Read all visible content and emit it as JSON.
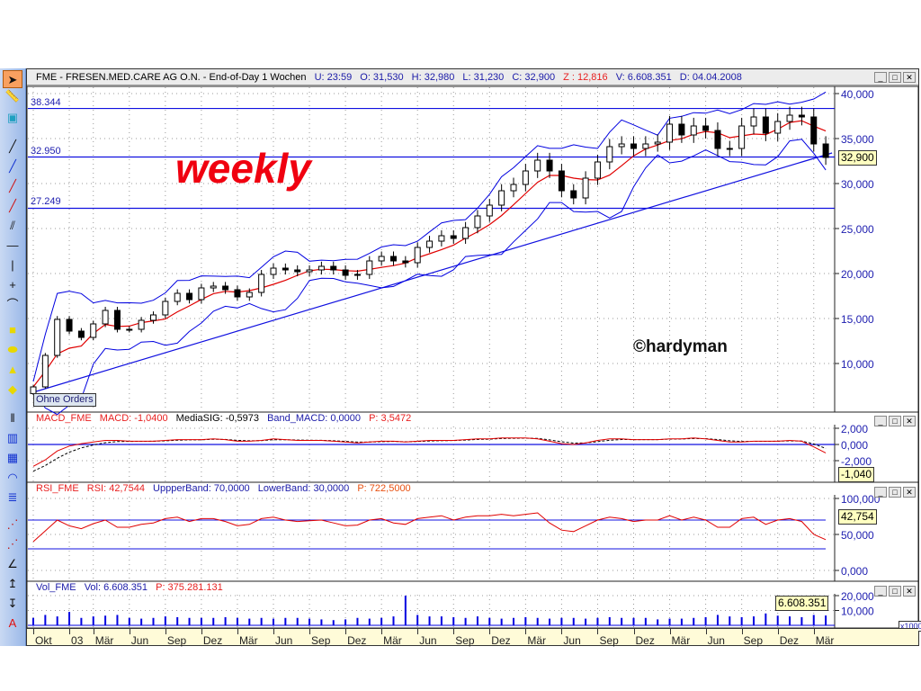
{
  "header": {
    "symbol": "FME - FRESEN.MED.CARE AG O.N. - End-of-Day 1 Wochen",
    "u": "U: 23:59",
    "o": "O: 31,530",
    "h": "H: 32,980",
    "l": "L: 31,230",
    "c": "C: 32,900",
    "z": "Z : 12,816",
    "v": "V: 6.608.351",
    "d": "D: 04.04.2008"
  },
  "overlays": {
    "weekly": "weekly",
    "copyright": "©hardyman",
    "ohne_orders": "Ohne Orders",
    "level_labels": [
      "38.344",
      "32.950",
      "27.249"
    ]
  },
  "macd_header": {
    "name": "MACD_FME",
    "macd": "MACD: -1,0400",
    "sig": "MediaSIG: -0,5973",
    "band": "Band_MACD: 0,0000",
    "p": "P: 3,5472"
  },
  "rsi_header": {
    "name": "RSI_FME",
    "rsi": "RSI: 42,7544",
    "upper": "UppperBand: 70,0000",
    "lower": "LowerBand: 30,0000",
    "p": "P: 722,5000"
  },
  "vol_header": {
    "name": "Vol_FME",
    "vol": "Vol: 6.608.351",
    "p": "P: 375.281.131"
  },
  "current": {
    "price": "32,900",
    "macd": "-1,040",
    "rsi": "42,754",
    "vol": "6.608.351",
    "vol_unit": "x1000"
  },
  "colors": {
    "price": "#000000",
    "sma": "#e00000",
    "bands": "#0000e0",
    "macd": "#e00000",
    "signal": "#000000",
    "rsi": "#e00000",
    "volume": "#0000e0",
    "weekly_text": "#f00010"
  },
  "toolbar": {
    "icons": [
      "arrow-cursor",
      "ruler",
      "fill-rectangle",
      "line",
      "line-blue",
      "line-red",
      "line-red-blue",
      "parallel-lines",
      "horizontal-line",
      "vertical-line",
      "crosshair",
      "curve",
      "rectangle",
      "ellipse",
      "triangle",
      "diamond",
      "two-columns",
      "four-columns",
      "chart-image",
      "arcs",
      "text-lines",
      "dotted-line",
      "dotted-lines",
      "angle",
      "arrow-up",
      "arrow-down",
      "text-a"
    ],
    "selected": "arrow-cursor"
  },
  "chart_data": {
    "type": "line",
    "dates": [
      "2002-10",
      "2002-11",
      "2002-12",
      "2003-01",
      "2003-02",
      "2003-03",
      "2003-04",
      "2003-05",
      "2003-06",
      "2003-07",
      "2003-08",
      "2003-09",
      "2003-10",
      "2003-11",
      "2003-12",
      "2004-01",
      "2004-02",
      "2004-03",
      "2004-04",
      "2004-05",
      "2004-06",
      "2004-07",
      "2004-08",
      "2004-09",
      "2004-10",
      "2004-11",
      "2004-12",
      "2005-01",
      "2005-02",
      "2005-03",
      "2005-04",
      "2005-05",
      "2005-06",
      "2005-07",
      "2005-08",
      "2005-09",
      "2005-10",
      "2005-11",
      "2005-12",
      "2006-01",
      "2006-02",
      "2006-03",
      "2006-04",
      "2006-05",
      "2006-06",
      "2006-07",
      "2006-08",
      "2006-09",
      "2006-10",
      "2006-11",
      "2006-12",
      "2007-01",
      "2007-02",
      "2007-03",
      "2007-04",
      "2007-05",
      "2007-06",
      "2007-07",
      "2007-08",
      "2007-09",
      "2007-10",
      "2007-11",
      "2007-12",
      "2008-01",
      "2008-02",
      "2008-03",
      "2008-04"
    ],
    "close": [
      7400,
      10900,
      14900,
      13600,
      12900,
      14400,
      15900,
      13800,
      13800,
      14800,
      15400,
      16900,
      17800,
      17100,
      18400,
      18600,
      18200,
      17400,
      17900,
      19900,
      20600,
      20400,
      20200,
      20400,
      20800,
      20400,
      19800,
      19900,
      21400,
      21900,
      21400,
      21200,
      22900,
      23600,
      24200,
      23900,
      25100,
      26400,
      27600,
      29200,
      29900,
      31400,
      32600,
      31400,
      29200,
      28400,
      30600,
      32400,
      34100,
      34400,
      33900,
      34400,
      34600,
      36600,
      35400,
      36400,
      35900,
      33900,
      33900,
      36400,
      37400,
      35600,
      36900,
      37600,
      37400,
      34400,
      32900
    ],
    "macd": [
      -2700,
      -1900,
      -800,
      -200,
      100,
      300,
      500,
      500,
      400,
      400,
      400,
      500,
      600,
      600,
      600,
      700,
      600,
      400,
      400,
      500,
      700,
      600,
      500,
      500,
      500,
      400,
      300,
      200,
      300,
      400,
      400,
      300,
      400,
      500,
      500,
      500,
      600,
      700,
      700,
      800,
      800,
      800,
      700,
      400,
      100,
      0,
      200,
      500,
      700,
      700,
      600,
      600,
      600,
      700,
      700,
      800,
      700,
      500,
      300,
      300,
      400,
      400,
      400,
      500,
      400,
      -300,
      -1040
    ],
    "rsi": [
      40,
      55,
      70,
      62,
      58,
      65,
      70,
      60,
      60,
      64,
      66,
      72,
      74,
      68,
      72,
      72,
      68,
      62,
      64,
      72,
      74,
      70,
      68,
      69,
      70,
      66,
      62,
      63,
      70,
      72,
      66,
      64,
      72,
      74,
      76,
      70,
      74,
      76,
      76,
      78,
      76,
      78,
      80,
      66,
      56,
      54,
      62,
      70,
      74,
      72,
      68,
      70,
      70,
      76,
      70,
      74,
      70,
      60,
      60,
      72,
      74,
      64,
      70,
      72,
      68,
      50,
      42.75
    ],
    "volume_thousands": [
      5000,
      7000,
      6000,
      9000,
      5000,
      6000,
      6500,
      7000,
      5000,
      4500,
      5000,
      6000,
      5500,
      5000,
      5000,
      5000,
      5500,
      5000,
      4500,
      5000,
      4500,
      5000,
      5000,
      4500,
      4000,
      3500,
      4000,
      5000,
      4500,
      5000,
      6000,
      20000,
      7000,
      6000,
      6000,
      5500,
      5000,
      6000,
      5000,
      4500,
      5000,
      5500,
      5000,
      4500,
      5000,
      5000,
      4500,
      5000,
      5500,
      5000,
      5000,
      5000,
      4000,
      4500,
      4500,
      5000,
      5500,
      7000,
      6000,
      5500,
      6000,
      8000,
      6500,
      6000,
      5500,
      7000,
      6608
    ],
    "levels": [
      38344,
      32950,
      27249
    ],
    "trendline": {
      "from": [
        "2002-10",
        6800
      ],
      "to": [
        "2008-04",
        33400
      ]
    },
    "rsi_bands": [
      70,
      30
    ],
    "price_axis": {
      "ylim": [
        4600,
        40800
      ],
      "ticks": [
        "40,000",
        "35,000",
        "30,000",
        "25,000",
        "20,000",
        "15,000",
        "10,000"
      ],
      "tick_values": [
        40000,
        35000,
        30000,
        25000,
        20000,
        15000,
        10000
      ]
    },
    "macd_axis": {
      "ticks": [
        "2,000",
        "0,000",
        "-2,000"
      ],
      "tick_values": [
        2000,
        0,
        -2000
      ]
    },
    "rsi_axis": {
      "ticks": [
        "100,000",
        "50,000",
        "0,000"
      ],
      "tick_values": [
        100,
        50,
        0
      ]
    },
    "vol_axis": {
      "ticks": [
        "20,000",
        "10,000"
      ],
      "tick_values": [
        20000,
        10000
      ]
    },
    "x_ticks": [
      {
        "label": "Okt",
        "date": "2002-10"
      },
      {
        "label": "03",
        "date": "2003-01"
      },
      {
        "label": "Mär",
        "date": "2003-03"
      },
      {
        "label": "Jun",
        "date": "2003-06"
      },
      {
        "label": "Sep",
        "date": "2003-09"
      },
      {
        "label": "Dez",
        "date": "2003-12"
      },
      {
        "label": "Mär",
        "date": "2004-03"
      },
      {
        "label": "Jun",
        "date": "2004-06"
      },
      {
        "label": "Sep",
        "date": "2004-09"
      },
      {
        "label": "Dez",
        "date": "2004-12"
      },
      {
        "label": "Mär",
        "date": "2005-03"
      },
      {
        "label": "Jun",
        "date": "2005-06"
      },
      {
        "label": "Sep",
        "date": "2005-09"
      },
      {
        "label": "Dez",
        "date": "2005-12"
      },
      {
        "label": "Mär",
        "date": "2006-03"
      },
      {
        "label": "Jun",
        "date": "2006-06"
      },
      {
        "label": "Sep",
        "date": "2006-09"
      },
      {
        "label": "Dez",
        "date": "2006-12"
      },
      {
        "label": "Mär",
        "date": "2007-03"
      },
      {
        "label": "Jun",
        "date": "2007-06"
      },
      {
        "label": "Sep",
        "date": "2007-09"
      },
      {
        "label": "Dez",
        "date": "2007-12"
      },
      {
        "label": "Mär",
        "date": "2008-03"
      }
    ],
    "grid": true
  }
}
